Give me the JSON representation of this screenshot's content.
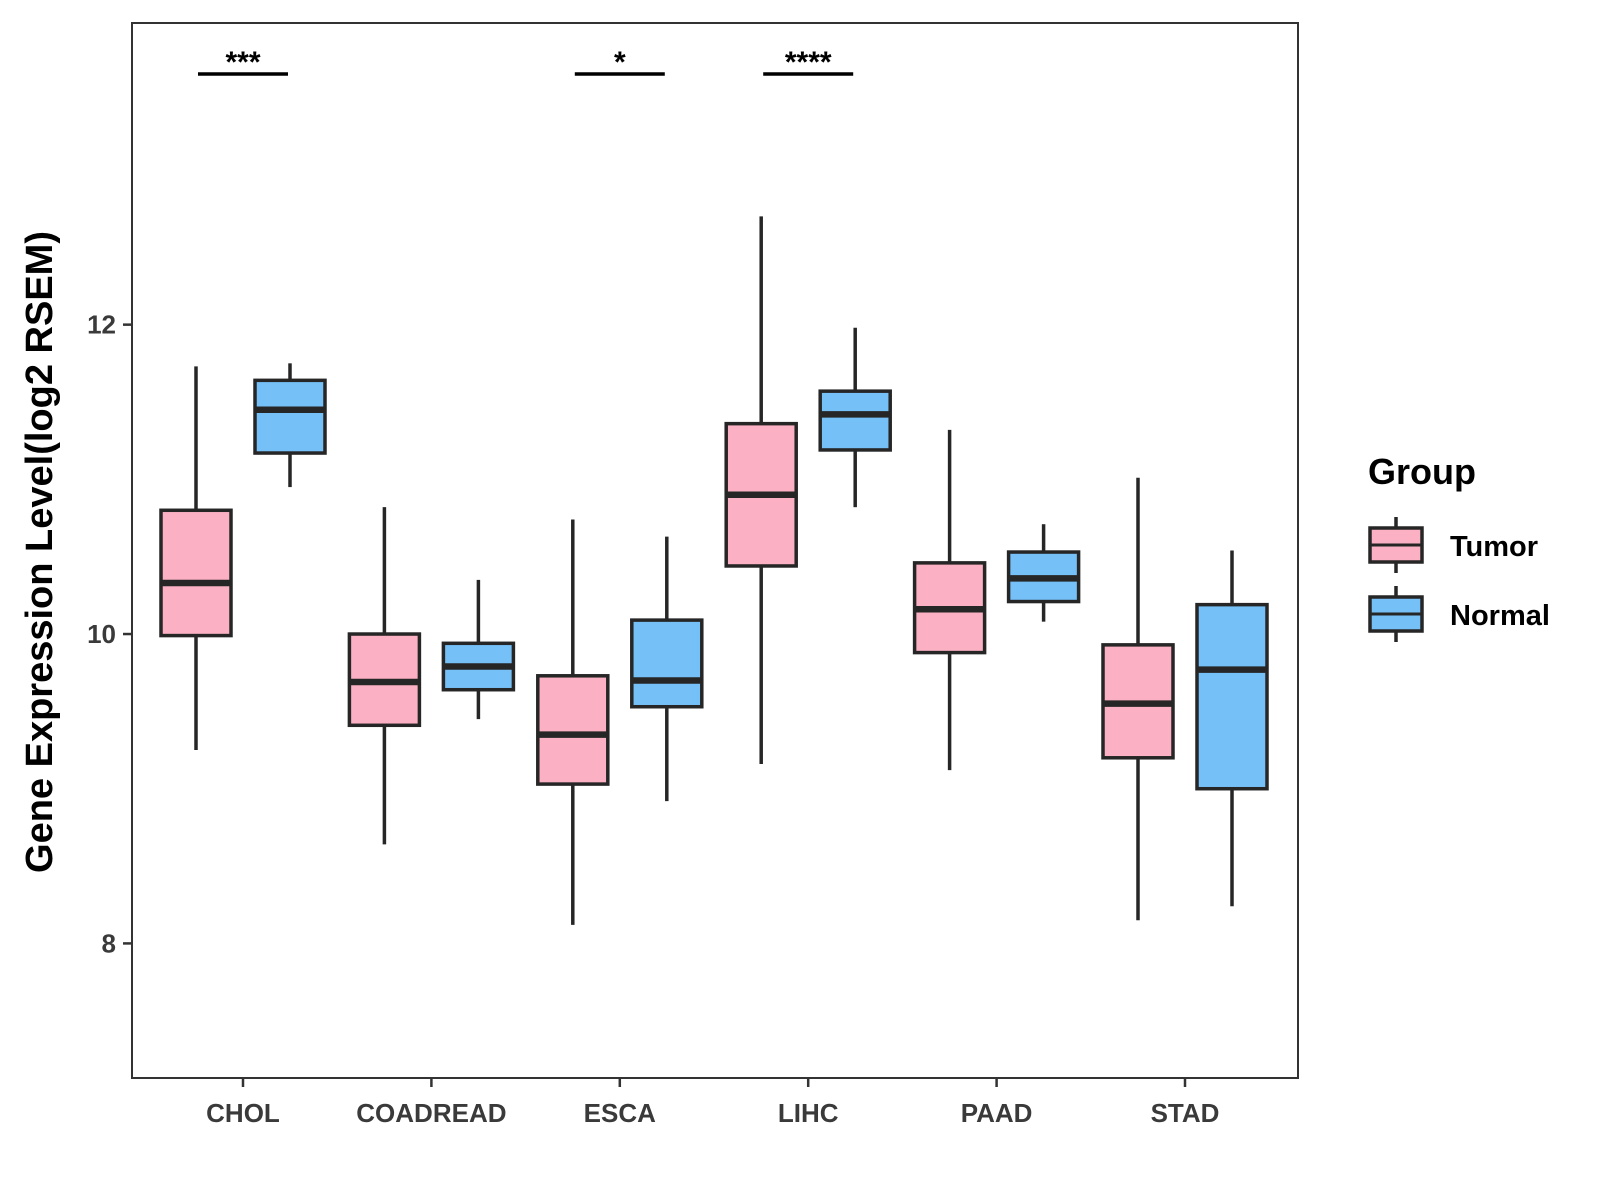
{
  "chart_data": {
    "type": "boxplot",
    "title": "",
    "xlabel": "",
    "ylabel": "Gene Expression Level(log2 RSEM)",
    "ylim": [
      7.13,
      13.95
    ],
    "yticks": [
      8,
      10,
      12
    ],
    "grid": false,
    "categories": [
      "CHOL",
      "COADREAD",
      "ESCA",
      "LIHC",
      "PAAD",
      "STAD"
    ],
    "legend": {
      "title": "Group",
      "position": "right",
      "entries": [
        {
          "name": "Tumor",
          "color": "#FBB1C3"
        },
        {
          "name": "Normal",
          "color": "#76C0F8"
        }
      ]
    },
    "series": [
      {
        "name": "Tumor",
        "color": "#FBB1C3",
        "boxes": [
          {
            "whisker_low": 9.25,
            "q1": 9.99,
            "median": 10.33,
            "q3": 10.8,
            "whisker_high": 11.73
          },
          {
            "whisker_low": 8.64,
            "q1": 9.41,
            "median": 9.69,
            "q3": 10.0,
            "whisker_high": 10.82
          },
          {
            "whisker_low": 8.12,
            "q1": 9.03,
            "median": 9.35,
            "q3": 9.73,
            "whisker_high": 10.74
          },
          {
            "whisker_low": 9.16,
            "q1": 10.44,
            "median": 10.9,
            "q3": 11.36,
            "whisker_high": 12.7
          },
          {
            "whisker_low": 9.12,
            "q1": 9.88,
            "median": 10.16,
            "q3": 10.46,
            "whisker_high": 11.32
          },
          {
            "whisker_low": 8.15,
            "q1": 9.2,
            "median": 9.55,
            "q3": 9.93,
            "whisker_high": 11.01
          }
        ]
      },
      {
        "name": "Normal",
        "color": "#76C0F8",
        "boxes": [
          {
            "whisker_low": 10.95,
            "q1": 11.17,
            "median": 11.45,
            "q3": 11.64,
            "whisker_high": 11.75
          },
          {
            "whisker_low": 9.45,
            "q1": 9.64,
            "median": 9.79,
            "q3": 9.94,
            "whisker_high": 10.35
          },
          {
            "whisker_low": 8.92,
            "q1": 9.53,
            "median": 9.7,
            "q3": 10.09,
            "whisker_high": 10.63
          },
          {
            "whisker_low": 10.82,
            "q1": 11.19,
            "median": 11.42,
            "q3": 11.57,
            "whisker_high": 11.98
          },
          {
            "whisker_low": 10.08,
            "q1": 10.21,
            "median": 10.36,
            "q3": 10.53,
            "whisker_high": 10.71
          },
          {
            "whisker_low": 8.24,
            "q1": 9.0,
            "median": 9.77,
            "q3": 10.19,
            "whisker_high": 10.54
          }
        ]
      }
    ],
    "annotations": [
      {
        "category": "CHOL",
        "label": "***"
      },
      {
        "category": "ESCA",
        "label": "*"
      },
      {
        "category": "LIHC",
        "label": "****"
      }
    ]
  }
}
